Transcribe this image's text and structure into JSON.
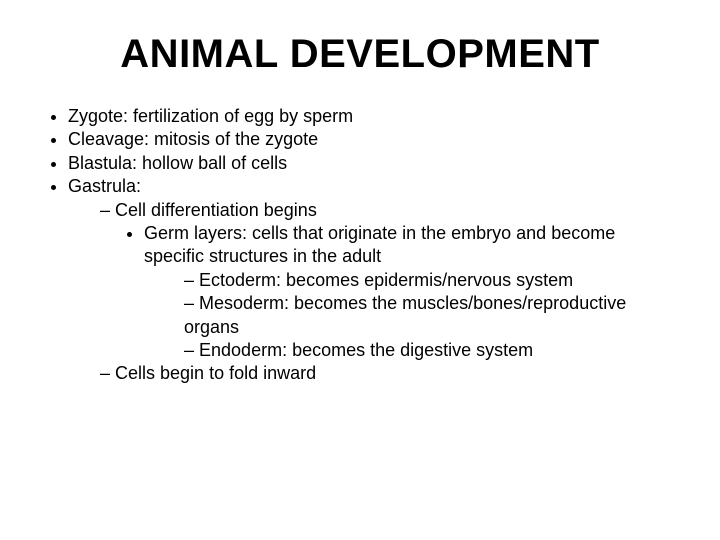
{
  "title": "ANIMAL DEVELOPMENT",
  "b1": "Zygote: fertilization of egg by sperm",
  "b2": "Cleavage: mitosis of the zygote",
  "b3": "Blastula: hollow ball of cells",
  "b4": "Gastrula:",
  "b4_1": "Cell differentiation begins",
  "b4_1_1": "Germ layers: cells that originate in the embryo and become specific structures in the adult",
  "b4_1_1_1": "Ectoderm: becomes epidermis/nervous system",
  "b4_1_1_2": "Mesoderm: becomes the muscles/bones/reproductive organs",
  "b4_1_1_3": "Endoderm: becomes the digestive system",
  "b4_2": "Cells begin to fold inward",
  "colors": {
    "background": "#ffffff",
    "text": "#000000"
  },
  "typography": {
    "title_fontsize_pt": 30,
    "body_fontsize_pt": 14,
    "font_family": "Arial"
  }
}
